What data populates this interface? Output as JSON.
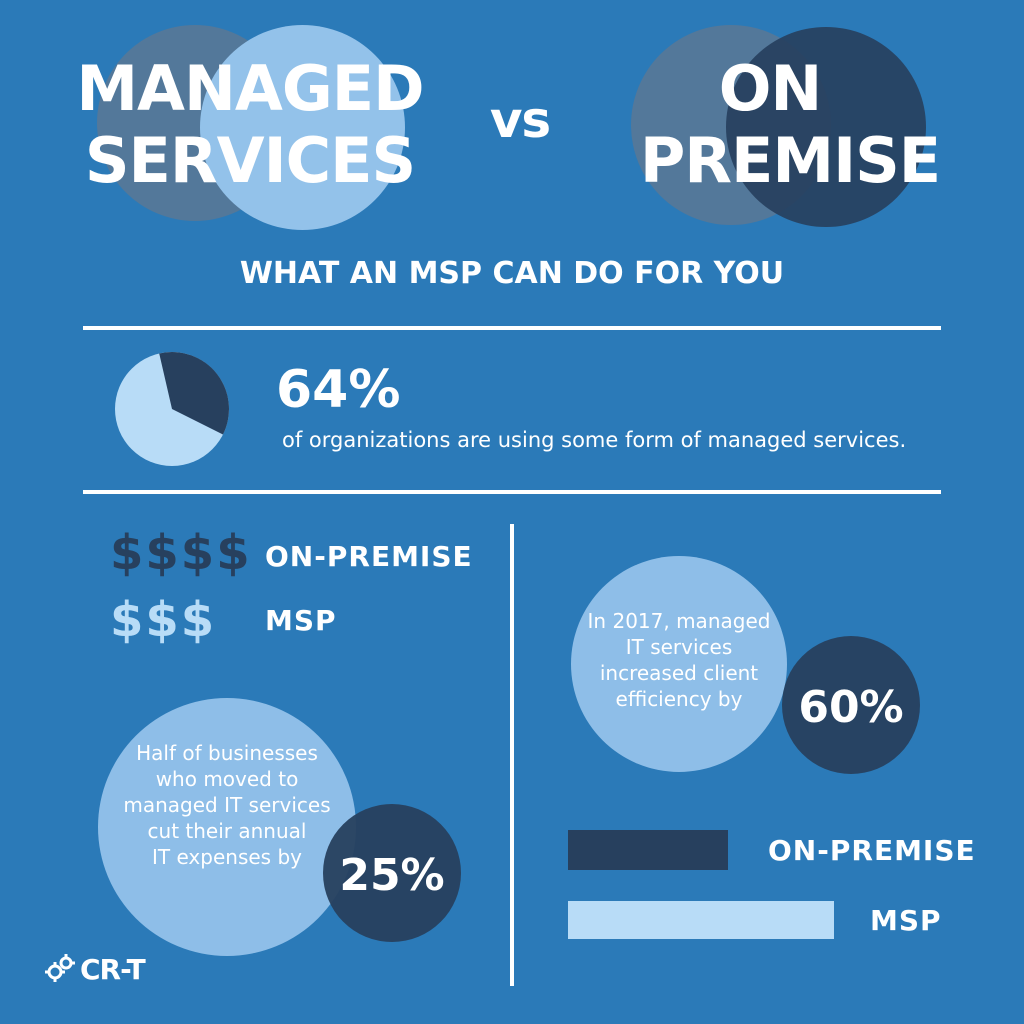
{
  "colors": {
    "background": "#2b7ab8",
    "dark_navy": "#27405e",
    "light_blue": "#b8dcf7",
    "mid_blue": "#93c2ea",
    "slate": "#53789a",
    "white": "#ffffff"
  },
  "header": {
    "left_line1": "MANAGED",
    "left_line2": "SERVICES",
    "versus": "vs",
    "right_line1": "ON",
    "right_line2": "PREMISE"
  },
  "subtitle": "WHAT AN MSP CAN DO FOR YOU",
  "stat_64": {
    "value": "64%",
    "description": "of organizations are using some form of managed services.",
    "pie_fraction": 0.64
  },
  "cost": {
    "on_premise_symbols": "$$$$",
    "on_premise_label": "ON-PREMISE",
    "msp_symbols": "$$$",
    "msp_label": "MSP"
  },
  "stat_25": {
    "line1": "Half of businesses",
    "line2": "who moved to",
    "line3": "managed IT services",
    "line4": "cut their annual",
    "line5": "IT expenses by",
    "value": "25%"
  },
  "stat_60": {
    "line1": "In 2017, managed",
    "line2": "IT services",
    "line3": "increased client",
    "line4": "efficiency by",
    "value": "60%"
  },
  "bars": {
    "on_premise_label": "ON-PREMISE",
    "msp_label": "MSP",
    "on_premise_value": 0.6,
    "msp_value": 1.0
  },
  "logo": {
    "text": "CR-T"
  }
}
